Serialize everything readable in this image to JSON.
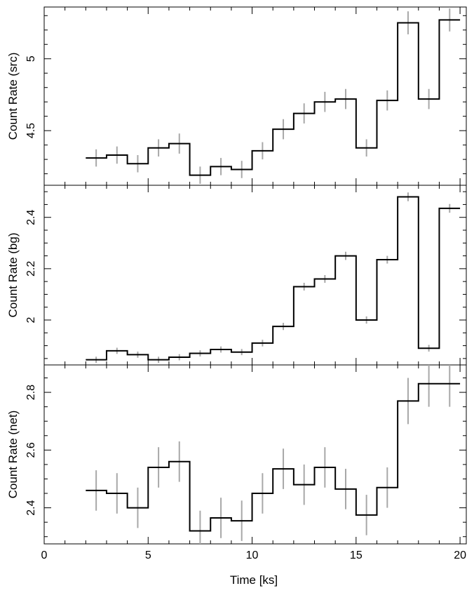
{
  "chart_data": {
    "type": "line",
    "x_axis": {
      "label": "Time [ks]",
      "range": [
        0,
        20.3
      ],
      "major_ticks": [
        0,
        5,
        10,
        15,
        20
      ],
      "tick_labels": [
        "0",
        "5",
        "10",
        "15",
        "20"
      ],
      "minor_step": 1
    },
    "bin_edges": [
      2,
      3,
      4,
      5,
      6,
      7,
      8,
      9,
      10,
      11,
      12,
      13,
      14,
      15,
      16,
      17,
      18,
      19,
      20
    ],
    "bin_centers": [
      2.5,
      3.5,
      4.5,
      5.5,
      6.5,
      7.5,
      8.5,
      9.5,
      10.5,
      11.5,
      12.5,
      13.5,
      14.5,
      15.5,
      16.5,
      17.5,
      18.5,
      19.5
    ],
    "panels": [
      {
        "ylabel": "Count Rate (src)",
        "ylim": [
          4.12,
          5.36
        ],
        "major_ticks": [
          4.5,
          5
        ],
        "tick_labels": [
          "4.5",
          "5"
        ],
        "minor_step": 0.1,
        "values": [
          4.31,
          4.33,
          4.27,
          4.38,
          4.41,
          4.19,
          4.25,
          4.23,
          4.36,
          4.51,
          4.62,
          4.7,
          4.72,
          4.38,
          4.71,
          5.25,
          4.72,
          5.27
        ],
        "errors": [
          0.06,
          0.06,
          0.06,
          0.06,
          0.07,
          0.06,
          0.06,
          0.06,
          0.06,
          0.07,
          0.07,
          0.07,
          0.07,
          0.06,
          0.07,
          0.08,
          0.07,
          0.08
        ]
      },
      {
        "ylabel": "Count Rate (bg)",
        "ylim": [
          1.825,
          2.525
        ],
        "major_ticks": [
          2,
          2.2,
          2.4
        ],
        "tick_labels": [
          "2",
          "2.2",
          "2.4"
        ],
        "minor_step": 0.05,
        "values": [
          1.845,
          1.88,
          1.865,
          1.845,
          1.855,
          1.87,
          1.885,
          1.875,
          1.91,
          1.975,
          2.13,
          2.16,
          2.25,
          2.0,
          2.235,
          2.48,
          1.89,
          2.435
        ],
        "errors": [
          0.012,
          0.012,
          0.012,
          0.012,
          0.012,
          0.012,
          0.012,
          0.012,
          0.013,
          0.014,
          0.015,
          0.015,
          0.016,
          0.014,
          0.015,
          0.017,
          0.013,
          0.017
        ]
      },
      {
        "ylabel": "Count Rate (net)",
        "ylim": [
          2.275,
          2.895
        ],
        "major_ticks": [
          2.4,
          2.6,
          2.8
        ],
        "tick_labels": [
          "2.4",
          "2.6",
          "2.8"
        ],
        "minor_step": 0.05,
        "values": [
          2.46,
          2.45,
          2.4,
          2.54,
          2.56,
          2.32,
          2.365,
          2.355,
          2.45,
          2.535,
          2.48,
          2.54,
          2.465,
          2.375,
          2.47,
          2.77,
          2.83,
          2.83
        ],
        "errors": [
          0.07,
          0.07,
          0.07,
          0.07,
          0.07,
          0.07,
          0.07,
          0.07,
          0.07,
          0.07,
          0.07,
          0.07,
          0.07,
          0.07,
          0.07,
          0.08,
          0.08,
          0.08
        ]
      }
    ]
  }
}
